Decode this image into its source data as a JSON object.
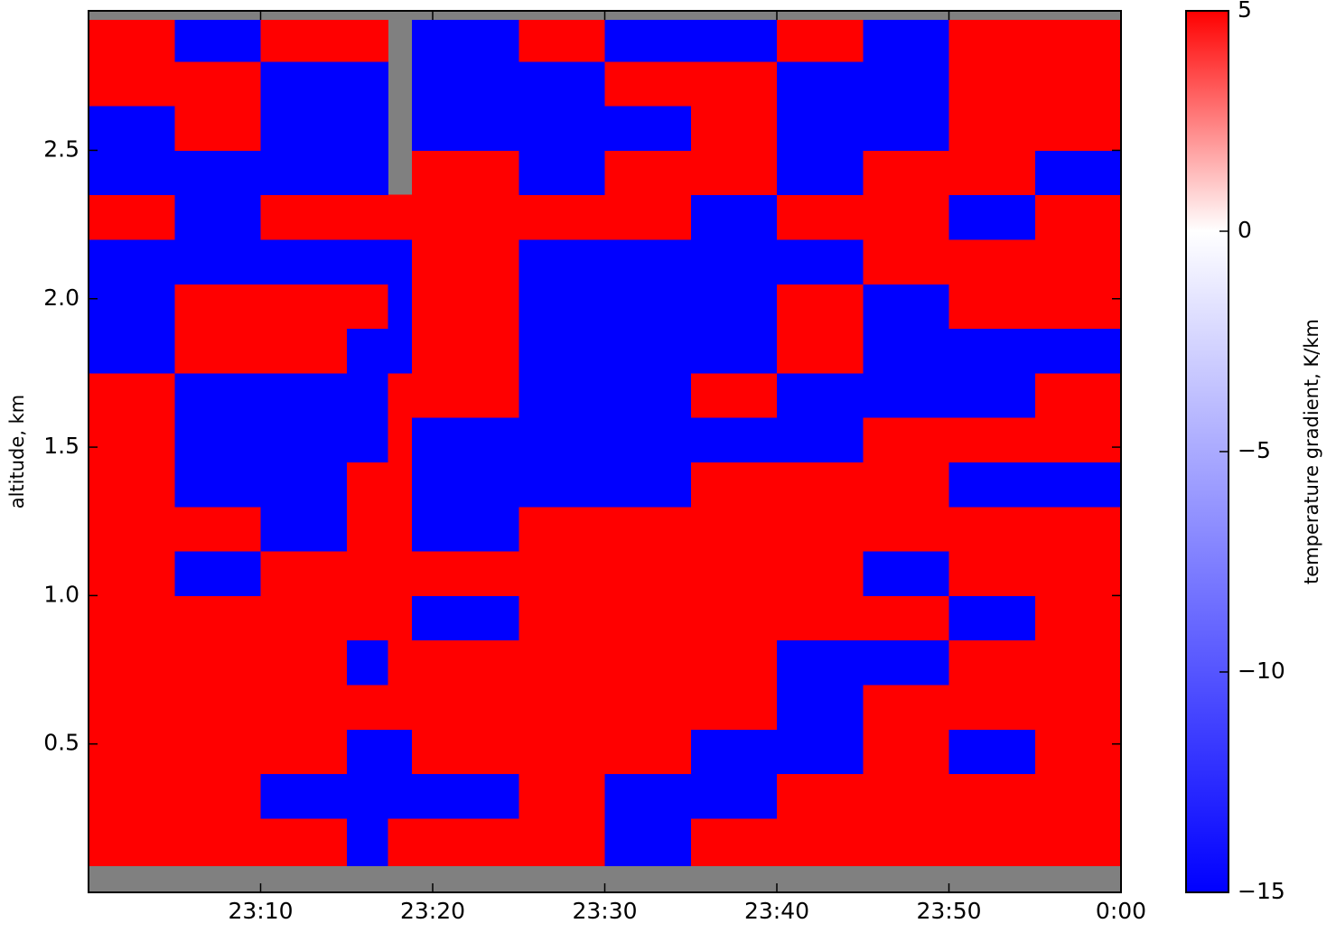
{
  "chart_data": {
    "type": "heatmap",
    "y_label": "altitude, km",
    "x_edges": [
      1380,
      1385,
      1390,
      1395,
      1397.4,
      1398.8,
      1405,
      1410,
      1415,
      1420,
      1425,
      1430,
      1435,
      1440
    ],
    "y_edges": [
      0.09,
      0.25,
      0.4,
      0.55,
      0.7,
      0.85,
      1.0,
      1.15,
      1.3,
      1.45,
      1.6,
      1.75,
      1.9,
      2.05,
      2.2,
      2.35,
      2.5,
      2.65,
      2.8,
      2.94
    ],
    "values": [
      [
        5,
        5,
        5,
        -15,
        5,
        5,
        5,
        -15,
        5,
        5,
        5,
        5,
        5
      ],
      [
        5,
        5,
        -15,
        -15,
        -15,
        -15,
        5,
        -15,
        -15,
        5,
        5,
        5,
        5
      ],
      [
        5,
        5,
        5,
        -15,
        -15,
        5,
        5,
        5,
        -15,
        -15,
        5,
        -15,
        5
      ],
      [
        5,
        5,
        5,
        5,
        5,
        5,
        5,
        5,
        5,
        -15,
        5,
        5,
        5
      ],
      [
        5,
        5,
        5,
        -15,
        5,
        5,
        5,
        5,
        5,
        -15,
        -15,
        5,
        5
      ],
      [
        5,
        5,
        5,
        5,
        5,
        -15,
        5,
        5,
        5,
        5,
        5,
        -15,
        5
      ],
      [
        5,
        -15,
        5,
        5,
        5,
        5,
        5,
        5,
        5,
        5,
        -15,
        5,
        5
      ],
      [
        5,
        5,
        -15,
        5,
        5,
        -15,
        5,
        5,
        5,
        5,
        5,
        5,
        5
      ],
      [
        5,
        -15,
        -15,
        5,
        5,
        -15,
        -15,
        -15,
        5,
        5,
        5,
        -15,
        -15
      ],
      [
        5,
        -15,
        -15,
        -15,
        5,
        -15,
        -15,
        -15,
        -15,
        -15,
        5,
        5,
        5
      ],
      [
        5,
        -15,
        -15,
        -15,
        5,
        5,
        -15,
        -15,
        5,
        -15,
        -15,
        -15,
        5
      ],
      [
        -15,
        5,
        5,
        -15,
        -15,
        5,
        -15,
        -15,
        -15,
        5,
        -15,
        -15,
        -15
      ],
      [
        -15,
        5,
        5,
        5,
        -15,
        5,
        -15,
        -15,
        -15,
        5,
        -15,
        5,
        5
      ],
      [
        -15,
        -15,
        -15,
        -15,
        -15,
        5,
        -15,
        -15,
        -15,
        -15,
        5,
        5,
        5
      ],
      [
        5,
        -15,
        5,
        5,
        5,
        5,
        5,
        5,
        -15,
        5,
        5,
        -15,
        5
      ],
      [
        -15,
        -15,
        -15,
        -15,
        null,
        5,
        -15,
        5,
        5,
        -15,
        5,
        5,
        -15
      ],
      [
        -15,
        5,
        -15,
        -15,
        null,
        -15,
        -15,
        -15,
        5,
        -15,
        -15,
        5,
        5
      ],
      [
        5,
        5,
        -15,
        -15,
        null,
        -15,
        -15,
        5,
        5,
        -15,
        -15,
        5,
        5
      ],
      [
        5,
        -15,
        5,
        5,
        null,
        -15,
        5,
        -15,
        -15,
        5,
        -15,
        5,
        5
      ]
    ],
    "missing_color": "#808080",
    "xlim": [
      1380,
      1440
    ],
    "ylim": [
      0,
      2.97
    ],
    "xticks": [
      {
        "value": 1390,
        "label": "23:10"
      },
      {
        "value": 1400,
        "label": "23:20"
      },
      {
        "value": 1410,
        "label": "23:30"
      },
      {
        "value": 1420,
        "label": "23:40"
      },
      {
        "value": 1430,
        "label": "23:50"
      },
      {
        "value": 1440,
        "label": "0:00"
      }
    ],
    "yticks": [
      0.5,
      {
        "value": 1,
        "label": "1.0"
      },
      1.5,
      {
        "value": 2,
        "label": "2.0"
      },
      2.5
    ],
    "colorbar": {
      "label": "temperature gradient, K/km",
      "clim": [
        -15,
        5
      ],
      "center": 0,
      "colors": [
        "#0000ff",
        "#ffffff",
        "#ff0000"
      ],
      "ticks": [
        5,
        0,
        {
          "value": -5,
          "label": "−5"
        },
        {
          "value": -10,
          "label": "−10"
        },
        {
          "value": -15,
          "label": "−15"
        }
      ]
    }
  }
}
